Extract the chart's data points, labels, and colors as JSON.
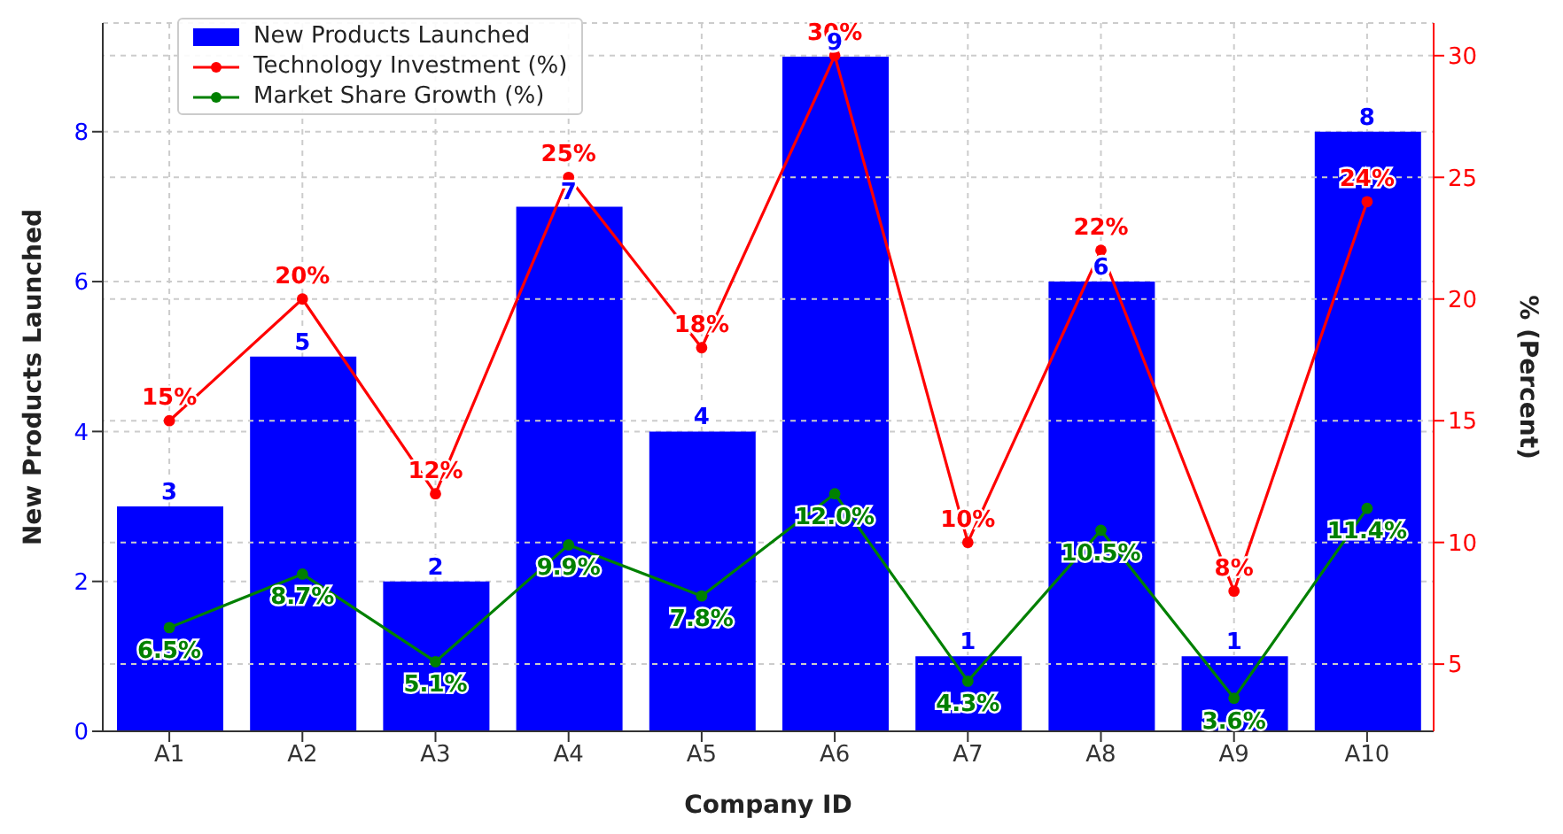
{
  "chart_data": {
    "type": "bar",
    "xlabel": "Company ID",
    "ylabel": "New Products Launched",
    "y2label": "% (Percent)",
    "categories": [
      "A1",
      "A2",
      "A3",
      "A4",
      "A5",
      "A6",
      "A7",
      "A8",
      "A9",
      "A10"
    ],
    "series": [
      {
        "name": "New Products Launched",
        "color": "#0000ff",
        "values": [
          3,
          5,
          2,
          7,
          4,
          9,
          1,
          6,
          1,
          8
        ],
        "value_labels": [
          "3",
          "5",
          "2",
          "7",
          "4",
          "9",
          "1",
          "6",
          "1",
          "8"
        ]
      },
      {
        "name": "Technology Investment (%)",
        "type": "line",
        "axis": "y2",
        "color": "#ff0000",
        "values": [
          15,
          20,
          12,
          25,
          18,
          30,
          10,
          22,
          8,
          24
        ],
        "value_labels": [
          "15%",
          "20%",
          "12%",
          "25%",
          "18%",
          "30%",
          "10%",
          "22%",
          "8%",
          "24%"
        ]
      },
      {
        "name": "Market Share Growth (%)",
        "type": "line",
        "axis": "y2",
        "color": "#008000",
        "values": [
          6.5,
          8.7,
          5.1,
          9.9,
          7.8,
          12.0,
          4.3,
          10.5,
          3.6,
          11.4
        ],
        "value_labels": [
          "6.5%",
          "8.7%",
          "5.1%",
          "9.9%",
          "7.8%",
          "12.0%",
          "4.3%",
          "10.5%",
          "3.6%",
          "11.4%"
        ]
      }
    ],
    "ylim": [
      0,
      9.45
    ],
    "yticks": [
      0,
      2,
      4,
      6,
      8
    ],
    "y2lim": [
      2.24,
      31.34
    ],
    "y2ticks": [
      5,
      10,
      15,
      20,
      25,
      30
    ],
    "grid": true,
    "legend": "top left",
    "marker": "circle",
    "line_style": "solid"
  }
}
